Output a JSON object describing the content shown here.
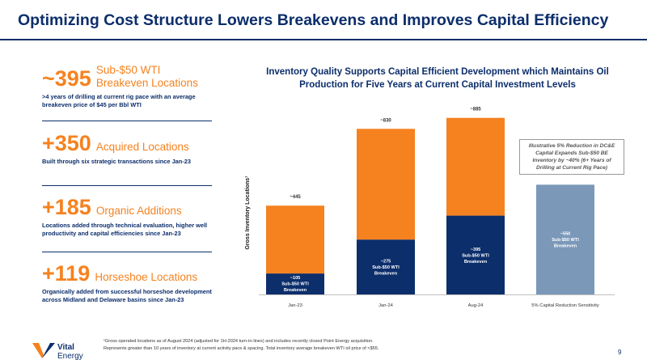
{
  "title": "Optimizing Cost Structure Lowers Breakevens and Improves Capital Efficiency",
  "stats": [
    {
      "num": "~395",
      "label": "Sub-$50 WTI Breakeven Locations",
      "desc": ">4 years of drilling at current rig pace with an average breakeven price of $45 per Bbl WTI"
    },
    {
      "num": "+350",
      "label": "Acquired Locations",
      "desc": "Built through six strategic transactions since Jan-23"
    },
    {
      "num": "+185",
      "label": "Organic Additions",
      "desc": "Locations added through technical evaluation, higher well productivity and capital efficiencies since Jan-23"
    },
    {
      "num": "+119",
      "label": "Horseshoe Locations",
      "desc": "Organically added from successful horseshoe development across Midland and Delaware basins since Jan-23"
    }
  ],
  "chart_title": "Inventory Quality Supports Capital Efficient Development which Maintains Oil Production for Five Years at Current Capital Investment Levels",
  "callout": "Illustrative 5% Reduction in DC&E Capital Expands Sub-$50 BE Inventory by ~40% (6+ Years of Drilling at Current Rig Pace)",
  "footnote_lines": [
    "¹Gross operated locations as of August 2024 (adjusted for 1H-2024 turn-in-lines) and includes recently closed Point Energy acquisition.",
    "Represents greater than 10 years of inventory at current activity pace & spacing. Total inventory average breakeven WTI oil price of <$55."
  ],
  "logo": {
    "line1": "Vital",
    "line2": "Energy"
  },
  "page_number": "9",
  "colors": {
    "navy": "#0c2e6b",
    "orange": "#f5821f",
    "steel": "#7b98b9"
  },
  "chart_data": {
    "type": "bar",
    "stacked": true,
    "categories": [
      "Jan-23",
      "Jan-24",
      "Aug-24",
      "5% Capital Reduction Sensitivity"
    ],
    "ylabel": "Gross Inventory Locations¹",
    "grid": false,
    "ylim": [
      0,
      900
    ],
    "series": [
      {
        "values": [
          105,
          275,
          395,
          550
        ],
        "labels": [
          "~105\nSub-$50 WTI\nBreakeven",
          "~275\nSub-$50 WTI\nBreakeven",
          "~395\nSub-$50 WTI\nBreakeven",
          "~550\nSub-$50 WTI\nBreakeven"
        ]
      },
      {
        "values": [
          340,
          555,
          490,
          0
        ]
      }
    ],
    "totals": [
      445,
      830,
      885,
      null
    ],
    "total_labels": [
      "~445",
      "~830",
      "~885",
      ""
    ]
  }
}
